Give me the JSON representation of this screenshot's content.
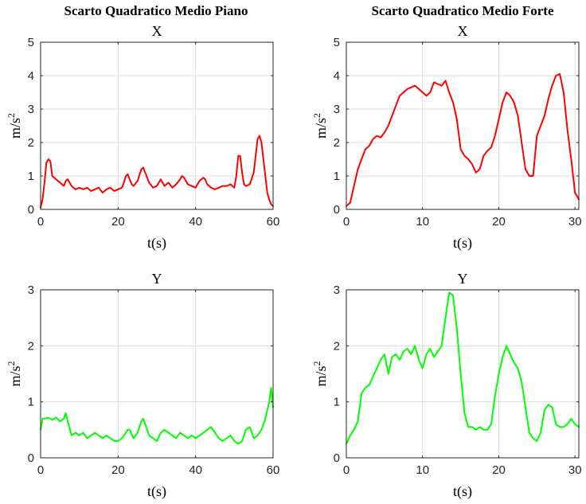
{
  "column_titles": [
    "Scarto Quadratico Medio Piano",
    "Scarto Quadratico Medio Forte"
  ],
  "chart_data": [
    {
      "type": "line",
      "group": "Scarto Quadratico Medio Piano",
      "title": "X",
      "xlabel": "t(s)",
      "ylabel": "m/s",
      "ylabel_superscript": "2",
      "xlim": [
        0,
        60
      ],
      "ylim": [
        0,
        5
      ],
      "xticks": [
        0,
        20,
        40,
        60
      ],
      "yticks": [
        0,
        1,
        2,
        3,
        4,
        5
      ],
      "grid": true,
      "color": "#ff0000",
      "series": [
        {
          "name": "X",
          "x": [
            0,
            0.5,
            1,
            1.5,
            2,
            2.5,
            3,
            4,
            5,
            6,
            6.5,
            7,
            7.5,
            8,
            9,
            10,
            11,
            12,
            13,
            14,
            15,
            16,
            17,
            18,
            19,
            20,
            21,
            21.5,
            22,
            22.5,
            23,
            23.5,
            24,
            25,
            26,
            26.5,
            27,
            28,
            29,
            30,
            31,
            32,
            33,
            34,
            35,
            36,
            36.5,
            37,
            38,
            39,
            40,
            41,
            42,
            42.5,
            43,
            44,
            45,
            46,
            47,
            48,
            49,
            50,
            50.5,
            51,
            51.5,
            52,
            52.5,
            53,
            54,
            55,
            55.5,
            56,
            56.5,
            57,
            57.5,
            58,
            58.5,
            59,
            59.5,
            60
          ],
          "y": [
            0.05,
            0.3,
            0.8,
            1.4,
            1.5,
            1.45,
            1.0,
            0.9,
            0.8,
            0.7,
            0.85,
            0.9,
            0.8,
            0.7,
            0.6,
            0.65,
            0.6,
            0.65,
            0.55,
            0.6,
            0.65,
            0.5,
            0.6,
            0.65,
            0.55,
            0.6,
            0.65,
            0.8,
            1.0,
            1.05,
            0.9,
            0.75,
            0.7,
            0.85,
            1.2,
            1.25,
            1.1,
            0.8,
            0.65,
            0.7,
            0.9,
            0.7,
            0.8,
            0.65,
            0.75,
            0.9,
            1.0,
            0.95,
            0.75,
            0.7,
            0.65,
            0.85,
            0.95,
            0.9,
            0.75,
            0.65,
            0.6,
            0.65,
            0.7,
            0.7,
            0.75,
            0.65,
            1.0,
            1.6,
            1.6,
            1.1,
            0.75,
            0.7,
            0.75,
            1.1,
            1.6,
            2.1,
            2.2,
            2.0,
            1.5,
            1.0,
            0.5,
            0.3,
            0.15,
            0.1
          ]
        }
      ]
    },
    {
      "type": "line",
      "group": "Scarto Quadratico Medio Forte",
      "title": "X",
      "xlabel": "t(s)",
      "ylabel": "m/s",
      "ylabel_superscript": "2",
      "xlim": [
        0,
        30.5
      ],
      "ylim": [
        0,
        5
      ],
      "xticks": [
        0,
        10,
        20,
        30
      ],
      "yticks": [
        0,
        1,
        2,
        3,
        4,
        5
      ],
      "grid": true,
      "color": "#ff0000",
      "series": [
        {
          "name": "X",
          "x": [
            0,
            0.5,
            1,
            1.5,
            2,
            2.5,
            3,
            3.5,
            4,
            4.5,
            5,
            5.5,
            6,
            6.5,
            7,
            7.5,
            8,
            8.5,
            9,
            9.5,
            10,
            10.5,
            11,
            11.5,
            12,
            12.5,
            13,
            13.5,
            14,
            14.5,
            15,
            15.5,
            16,
            16.5,
            17,
            17.5,
            18,
            18.5,
            19,
            19.5,
            20,
            20.5,
            21,
            21.5,
            22,
            22.5,
            23,
            23.5,
            24,
            24.5,
            25,
            25.5,
            26,
            26.5,
            27,
            27.5,
            28,
            28.5,
            29,
            29.5,
            30,
            30.5
          ],
          "y": [
            0.1,
            0.2,
            0.7,
            1.2,
            1.5,
            1.8,
            1.9,
            2.1,
            2.2,
            2.15,
            2.3,
            2.5,
            2.8,
            3.1,
            3.4,
            3.5,
            3.6,
            3.65,
            3.7,
            3.6,
            3.5,
            3.4,
            3.5,
            3.8,
            3.75,
            3.7,
            3.85,
            3.5,
            3.2,
            2.7,
            1.8,
            1.6,
            1.5,
            1.35,
            1.1,
            1.2,
            1.6,
            1.75,
            1.85,
            2.2,
            2.7,
            3.2,
            3.5,
            3.4,
            3.2,
            2.8,
            2.0,
            1.2,
            1.0,
            1.0,
            2.2,
            2.5,
            2.8,
            3.3,
            3.7,
            4.0,
            4.05,
            3.5,
            2.4,
            1.5,
            0.5,
            0.3
          ]
        }
      ]
    },
    {
      "type": "line",
      "group": "Scarto Quadratico Medio Piano",
      "title": "Y",
      "xlabel": "t(s)",
      "ylabel": "m/s",
      "ylabel_superscript": "2",
      "xlim": [
        0,
        60
      ],
      "ylim": [
        0,
        3
      ],
      "xticks": [
        0,
        20,
        40,
        60
      ],
      "yticks": [
        0,
        1,
        2,
        3
      ],
      "grid": true,
      "color": "#00ff00",
      "series": [
        {
          "name": "Y",
          "x": [
            0,
            0.5,
            1,
            2,
            3,
            4,
            5,
            6,
            6.5,
            7,
            8,
            9,
            10,
            11,
            12,
            13,
            14,
            15,
            16,
            17,
            18,
            19,
            20,
            21,
            22,
            22.5,
            23,
            24,
            25,
            26,
            26.5,
            27,
            28,
            29,
            30,
            31,
            32,
            33,
            34,
            35,
            36,
            37,
            38,
            39,
            40,
            41,
            42,
            43,
            44,
            45,
            46,
            47,
            48,
            49,
            50,
            51,
            52,
            53,
            54,
            55,
            56,
            57,
            58,
            59,
            59.5,
            60
          ],
          "y": [
            0.5,
            0.7,
            0.7,
            0.72,
            0.68,
            0.72,
            0.65,
            0.7,
            0.8,
            0.65,
            0.4,
            0.45,
            0.4,
            0.45,
            0.35,
            0.4,
            0.45,
            0.4,
            0.35,
            0.4,
            0.35,
            0.3,
            0.3,
            0.35,
            0.45,
            0.5,
            0.5,
            0.35,
            0.45,
            0.65,
            0.7,
            0.6,
            0.4,
            0.35,
            0.3,
            0.45,
            0.5,
            0.45,
            0.4,
            0.35,
            0.45,
            0.4,
            0.35,
            0.4,
            0.35,
            0.4,
            0.45,
            0.5,
            0.55,
            0.45,
            0.35,
            0.3,
            0.35,
            0.4,
            0.3,
            0.25,
            0.3,
            0.5,
            0.55,
            0.35,
            0.4,
            0.5,
            0.7,
            1.0,
            1.25,
            0.9
          ]
        }
      ]
    },
    {
      "type": "line",
      "group": "Scarto Quadratico Medio Forte",
      "title": "Y",
      "xlabel": "t(s)",
      "ylabel": "m/s",
      "ylabel_superscript": "2",
      "xlim": [
        0,
        30.5
      ],
      "ylim": [
        0,
        3
      ],
      "xticks": [
        0,
        10,
        20,
        30
      ],
      "yticks": [
        0,
        1,
        2,
        3
      ],
      "grid": true,
      "color": "#00ff00",
      "series": [
        {
          "name": "Y",
          "x": [
            0,
            0.5,
            1,
            1.5,
            2,
            2.5,
            3,
            3.5,
            4,
            4.5,
            5,
            5.5,
            6,
            6.5,
            7,
            7.5,
            8,
            8.5,
            9,
            9.5,
            10,
            10.5,
            11,
            11.5,
            12,
            12.5,
            13,
            13.5,
            14,
            14.5,
            15,
            15.5,
            16,
            16.5,
            17,
            17.5,
            18,
            18.5,
            19,
            19.5,
            20,
            20.5,
            21,
            21.5,
            22,
            22.5,
            23,
            23.5,
            24,
            24.5,
            25,
            25.5,
            26,
            26.5,
            27,
            27.5,
            28,
            28.5,
            29,
            29.5,
            30,
            30.5
          ],
          "y": [
            0.25,
            0.4,
            0.5,
            0.65,
            1.15,
            1.25,
            1.3,
            1.45,
            1.6,
            1.75,
            1.85,
            1.5,
            1.8,
            1.85,
            1.75,
            1.9,
            1.95,
            1.85,
            2.0,
            1.75,
            1.6,
            1.85,
            1.95,
            1.8,
            1.9,
            2.0,
            2.5,
            2.95,
            2.9,
            2.3,
            1.5,
            0.8,
            0.55,
            0.55,
            0.5,
            0.55,
            0.5,
            0.5,
            0.6,
            1.1,
            1.5,
            1.8,
            2.0,
            1.85,
            1.7,
            1.6,
            1.35,
            0.9,
            0.45,
            0.35,
            0.3,
            0.45,
            0.85,
            0.95,
            0.9,
            0.6,
            0.55,
            0.55,
            0.6,
            0.7,
            0.6,
            0.55
          ]
        }
      ]
    }
  ]
}
